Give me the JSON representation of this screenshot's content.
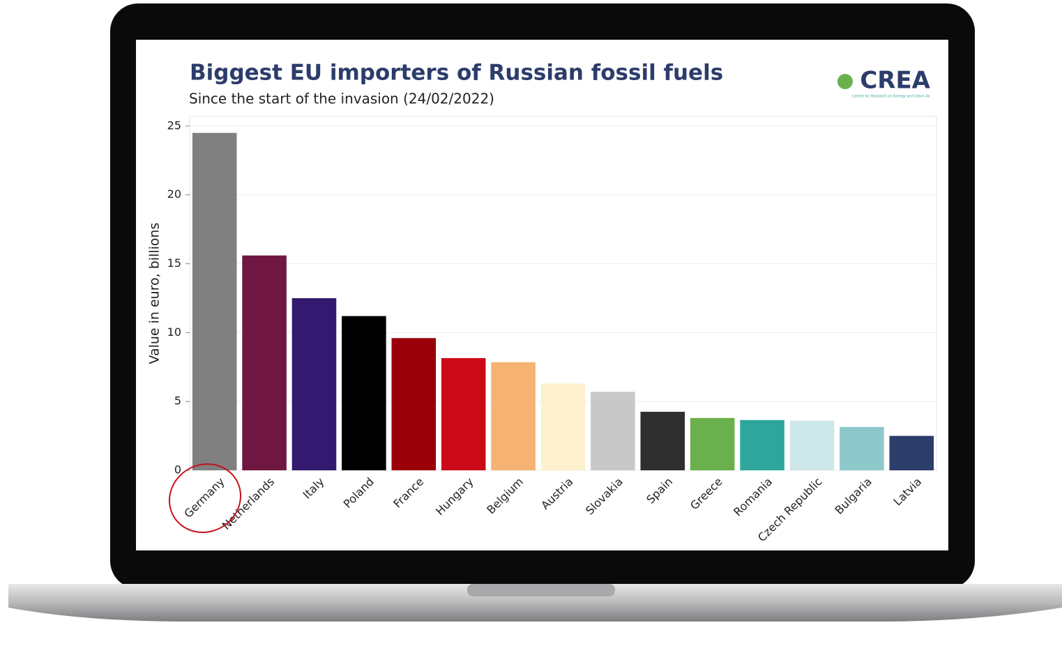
{
  "chart_data": {
    "type": "bar",
    "title": "Biggest EU importers of Russian fossil fuels",
    "subtitle": "Since the start of the invasion (24/02/2022)",
    "logo": "CREA",
    "logo_subtitle": "Centre for Research on Energy and Clean Air",
    "y_label": "Value in euro, billions",
    "categories": [
      "Germany",
      "Netherlands",
      "Italy",
      "Poland",
      "France",
      "Hungary",
      "Belgium",
      "Austria",
      "Slovakia",
      "Spain",
      "Greece",
      "Romania",
      "Czech Republic",
      "Bulgaria",
      "Latvia"
    ],
    "values": [
      24.5,
      15.6,
      12.5,
      11.2,
      9.6,
      8.15,
      7.85,
      6.3,
      5.7,
      4.25,
      3.8,
      3.65,
      3.6,
      3.15,
      2.5
    ],
    "colors": [
      "#808080",
      "#6f1741",
      "#33196f",
      "#000000",
      "#990009",
      "#cc0a17",
      "#f5b273",
      "#fdf0cf",
      "#c8c8c8",
      "#2f2f2f",
      "#6ab04c",
      "#2ea69c",
      "#cde6e8",
      "#8ec8cb",
      "#2c3c6b"
    ],
    "ylim": [
      0,
      25.7
    ],
    "yticks": [
      0,
      5,
      10,
      15,
      20,
      25
    ],
    "grid": true
  }
}
